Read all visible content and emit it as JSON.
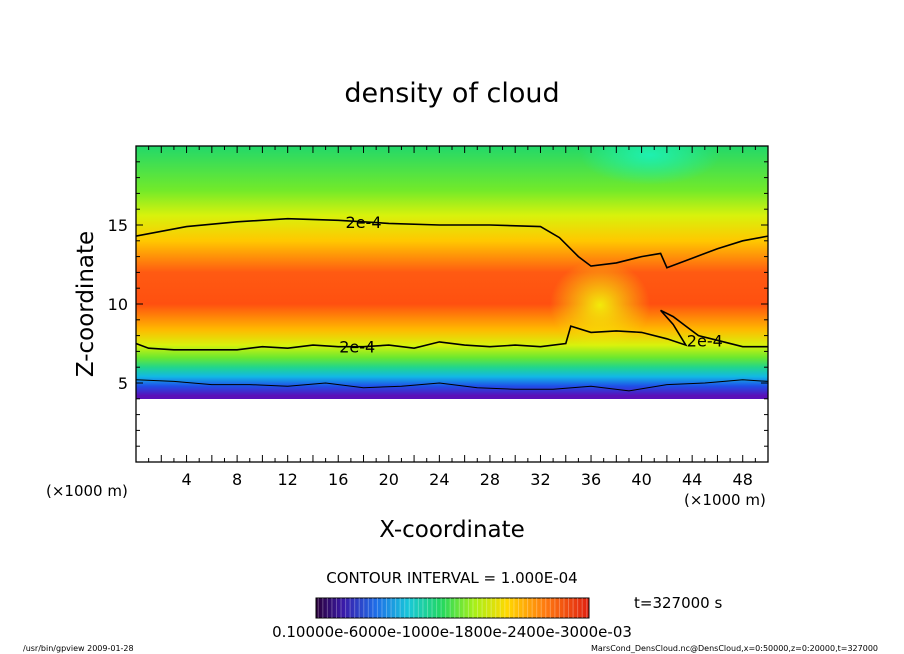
{
  "chart_data": {
    "type": "heatmap",
    "title": "density of cloud",
    "xlabel": "X-coordinate",
    "ylabel": "Z-coordinate",
    "x_unit": "(×1000 m)",
    "y_unit": "(×1000 m)",
    "xlim": [
      0,
      50
    ],
    "ylim": [
      0,
      20
    ],
    "x_ticks": [
      4,
      8,
      12,
      16,
      20,
      24,
      28,
      32,
      36,
      40,
      44,
      48
    ],
    "y_ticks": [
      5,
      10,
      15
    ],
    "colormap": "rainbow (purple-blue-green-yellow-red)",
    "contour_interval_text": "CONTOUR INTERVAL = 1.000E-04",
    "time_text": "t=327000 s",
    "colorbar_label_text": "0.10000e-6000e-1000e-1800e-2400e-3000e-03",
    "contours": [
      {
        "label": "2e-4",
        "points": [
          [
            0,
            14.3
          ],
          [
            4,
            14.9
          ],
          [
            8,
            15.2
          ],
          [
            12,
            15.4
          ],
          [
            16,
            15.3
          ],
          [
            20,
            15.1
          ],
          [
            24,
            15.0
          ],
          [
            28,
            15.0
          ],
          [
            32,
            14.9
          ],
          [
            33.5,
            14.2
          ],
          [
            35,
            13.0
          ],
          [
            36,
            12.4
          ],
          [
            38,
            12.6
          ],
          [
            40,
            13.0
          ],
          [
            41.5,
            13.2
          ],
          [
            42,
            12.3
          ],
          [
            44,
            12.9
          ],
          [
            46,
            13.5
          ],
          [
            48,
            14.0
          ],
          [
            50,
            14.3
          ]
        ]
      },
      {
        "label": "2e-4",
        "points": [
          [
            0,
            7.5
          ],
          [
            1,
            7.2
          ],
          [
            3,
            7.1
          ],
          [
            6,
            7.1
          ],
          [
            8,
            7.1
          ],
          [
            10,
            7.3
          ],
          [
            12,
            7.2
          ],
          [
            14,
            7.4
          ],
          [
            16,
            7.3
          ],
          [
            18,
            7.3
          ],
          [
            20,
            7.4
          ],
          [
            22,
            7.2
          ],
          [
            24,
            7.6
          ],
          [
            26,
            7.4
          ],
          [
            28,
            7.3
          ],
          [
            30,
            7.4
          ],
          [
            32,
            7.3
          ],
          [
            34,
            7.5
          ],
          [
            34.4,
            8.6
          ],
          [
            36,
            8.2
          ],
          [
            38,
            8.3
          ],
          [
            40,
            8.2
          ],
          [
            42,
            7.8
          ],
          [
            43.5,
            7.4
          ],
          [
            42.5,
            8.7
          ],
          [
            41.5,
            9.6
          ],
          [
            42.5,
            9.2
          ],
          [
            43.5,
            8.6
          ],
          [
            44.5,
            8.0
          ],
          [
            46,
            7.7
          ],
          [
            48,
            7.3
          ],
          [
            50,
            7.3
          ]
        ]
      },
      {
        "label": "",
        "points": [
          [
            0,
            5.2
          ],
          [
            3,
            5.1
          ],
          [
            6,
            4.9
          ],
          [
            9,
            4.9
          ],
          [
            12,
            4.8
          ],
          [
            15,
            5.0
          ],
          [
            18,
            4.7
          ],
          [
            21,
            4.8
          ],
          [
            24,
            5.0
          ],
          [
            27,
            4.7
          ],
          [
            30,
            4.6
          ],
          [
            33,
            4.6
          ],
          [
            36,
            4.8
          ],
          [
            39,
            4.5
          ],
          [
            42,
            4.9
          ],
          [
            45,
            5.0
          ],
          [
            48,
            5.2
          ],
          [
            50,
            5.1
          ]
        ]
      }
    ],
    "footer_left": "/usr/bin/gpview  2009-01-28",
    "footer_right": "MarsCond_DensCloud.nc@DensCloud,x=0:50000,z=0:20000,t=327000"
  }
}
